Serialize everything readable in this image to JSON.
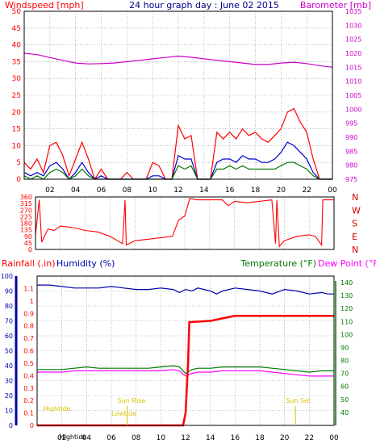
{
  "title": "24 hour graph day : June 02 2015",
  "colors": {
    "wind": "#ff0000",
    "baro": "#cc00cc",
    "hum": "#0000aa",
    "temp": "#007700",
    "dew": "#ff00ff",
    "rain": "#ff0000",
    "tide": "#ffff00",
    "grid": "#909090"
  },
  "chart_data": [
    {
      "id": "wind_baro",
      "type": "line",
      "left_label": "Windspeed [mph]",
      "right_label": "Barometer [mb]",
      "x_ticks": [
        "02",
        "04",
        "06",
        "08",
        "10",
        "12",
        "14",
        "16",
        "18",
        "20",
        "22",
        "00"
      ],
      "y_left_ticks": [
        0,
        5,
        10,
        15,
        20,
        25,
        30,
        35,
        40,
        45,
        50
      ],
      "y_right_ticks": [
        975,
        980,
        985,
        990,
        995,
        1000,
        1005,
        1010,
        1015,
        1020,
        1025,
        1030,
        1035
      ],
      "ylim_left": [
        0,
        50
      ],
      "ylim_right": [
        975,
        1035
      ],
      "series": [
        {
          "name": "barometer",
          "axis": "right",
          "x": [
            0,
            1,
            2,
            3,
            4,
            5,
            6,
            7,
            8,
            9,
            10,
            11,
            12,
            13,
            14,
            15,
            16,
            17,
            18,
            19,
            20,
            21,
            22,
            23,
            24
          ],
          "y": [
            1020,
            1019.5,
            1018.5,
            1017.5,
            1016.5,
            1016.2,
            1016.3,
            1016.5,
            1017,
            1017.5,
            1018,
            1018.5,
            1019,
            1018.6,
            1018,
            1017.5,
            1017,
            1016.5,
            1016,
            1016,
            1016.5,
            1016.8,
            1016.3,
            1015.6,
            1015
          ]
        },
        {
          "name": "wind_gust",
          "axis": "left",
          "x": [
            0,
            0.5,
            1,
            1.5,
            2,
            2.5,
            3,
            3.5,
            4,
            4.5,
            5,
            5.5,
            6,
            6.5,
            7,
            7.5,
            8,
            8.5,
            9,
            9.5,
            10,
            10.5,
            11,
            11.5,
            12,
            12.5,
            13,
            13.5,
            14,
            14.5,
            15,
            15.5,
            16,
            16.5,
            17,
            17.5,
            18,
            18.5,
            19,
            19.5,
            20,
            20.5,
            21,
            21.5,
            22,
            22.5,
            23,
            23.5,
            24
          ],
          "y": [
            5,
            3,
            6,
            2,
            10,
            11,
            7,
            1,
            6,
            11,
            6,
            0,
            3,
            0,
            0,
            0,
            2,
            0,
            0,
            0,
            5,
            4,
            0,
            0,
            16,
            12,
            13,
            0,
            0,
            0,
            14,
            12,
            14,
            12,
            15,
            13,
            14,
            12,
            11,
            13,
            15,
            20,
            21,
            17,
            14,
            6,
            0,
            0,
            0
          ]
        },
        {
          "name": "wind_speed",
          "axis": "left",
          "x": [
            0,
            0.5,
            1,
            1.5,
            2,
            2.5,
            3,
            3.5,
            4,
            4.5,
            5,
            5.5,
            6,
            6.5,
            7,
            7.5,
            8,
            8.5,
            9,
            9.5,
            10,
            10.5,
            11,
            11.5,
            12,
            12.5,
            13,
            13.5,
            14,
            14.5,
            15,
            15.5,
            16,
            16.5,
            17,
            17.5,
            18,
            18.5,
            19,
            19.5,
            20,
            20.5,
            21,
            21.5,
            22,
            22.5,
            23,
            23.5,
            24
          ],
          "y": [
            2,
            1,
            2,
            1,
            4,
            5,
            3,
            0,
            2,
            5,
            2,
            0,
            1,
            0,
            0,
            0,
            0,
            0,
            0,
            0,
            1,
            1,
            0,
            0,
            7,
            6,
            6,
            0,
            0,
            0,
            5,
            6,
            6,
            5,
            7,
            6,
            6,
            5,
            5,
            6,
            8,
            11,
            10,
            8,
            6,
            2,
            0,
            0,
            0
          ]
        },
        {
          "name": "wind_avg",
          "axis": "left",
          "x": [
            0,
            0.5,
            1,
            1.5,
            2,
            2.5,
            3,
            3.5,
            4,
            4.5,
            5,
            5.5,
            6,
            6.5,
            7,
            7.5,
            8,
            8.5,
            9,
            9.5,
            10,
            10.5,
            11,
            11.5,
            12,
            12.5,
            13,
            13.5,
            14,
            14.5,
            15,
            15.5,
            16,
            16.5,
            17,
            17.5,
            18,
            18.5,
            19,
            19.5,
            20,
            20.5,
            21,
            21.5,
            22,
            22.5,
            23,
            23.5,
            24
          ],
          "y": [
            1,
            0,
            1,
            0,
            2,
            3,
            2,
            0,
            1,
            3,
            1,
            0,
            0,
            0,
            0,
            0,
            0,
            0,
            0,
            0,
            0,
            0,
            0,
            0,
            4,
            3,
            4,
            0,
            0,
            0,
            3,
            3,
            4,
            3,
            4,
            3,
            3,
            3,
            3,
            3,
            4,
            5,
            5,
            4,
            3,
            1,
            0,
            0,
            0
          ]
        }
      ]
    },
    {
      "id": "wind_dir",
      "type": "line",
      "x_ticks": [],
      "y_left_ticks": [
        0,
        45,
        90,
        135,
        180,
        225,
        270,
        315,
        360
      ],
      "y_right_labels": [
        "N",
        "W",
        "S",
        "E",
        "N"
      ],
      "ylim_left": [
        0,
        360
      ],
      "series": [
        {
          "name": "wind_direction",
          "x": [
            0,
            0.3,
            0.5,
            1,
            1.5,
            2,
            3,
            4,
            5,
            6,
            7,
            7.2,
            7.3,
            8,
            9,
            10,
            11,
            11.5,
            12,
            12.4,
            13,
            14,
            15,
            15.5,
            16,
            17,
            18,
            19,
            19.3,
            19.4,
            19.6,
            20,
            21,
            22,
            22.5,
            23,
            23.1,
            24
          ],
          "y": [
            100,
            340,
            50,
            140,
            130,
            160,
            150,
            130,
            120,
            90,
            40,
            340,
            30,
            60,
            70,
            80,
            90,
            200,
            230,
            350,
            340,
            340,
            340,
            300,
            330,
            320,
            330,
            340,
            40,
            340,
            20,
            60,
            90,
            100,
            90,
            30,
            340,
            340
          ]
        }
      ]
    },
    {
      "id": "temp_hum_rain",
      "type": "line",
      "labels": [
        "Rainfall (.in)",
        "Humidity (%)",
        "Temperature (°F)",
        "Dew Point (°F)"
      ],
      "x_ticks": [
        "02",
        "04",
        "06",
        "08",
        "10",
        "12",
        "14",
        "16",
        "18",
        "20",
        "22",
        "00"
      ],
      "y_hum_ticks": [
        0,
        10,
        20,
        30,
        40,
        50,
        60,
        70,
        80,
        90,
        100
      ],
      "y_rain_ticks": [
        0,
        0.1,
        0.2,
        0.3,
        0.4,
        0.5,
        0.6,
        0.7,
        0.8,
        0.9,
        1,
        1.1
      ],
      "y_temp_ticks": [
        40,
        50,
        60,
        70,
        80,
        90,
        100,
        110,
        120,
        130,
        140
      ],
      "ylim_hum": [
        0,
        100
      ],
      "ylim_rain": [
        0,
        1.2
      ],
      "ylim_temp": [
        30,
        145
      ],
      "series": [
        {
          "name": "humidity",
          "axis": "hum",
          "x": [
            0,
            1,
            2,
            3,
            4,
            5,
            6,
            7,
            8,
            9,
            10,
            11,
            11.5,
            12,
            12.5,
            13,
            14,
            14.5,
            15,
            16,
            17,
            18,
            19,
            20,
            21,
            22,
            23,
            23.5,
            24
          ],
          "y": [
            94,
            94,
            93,
            92,
            92,
            92,
            93,
            92,
            91,
            91,
            92,
            91,
            89,
            91,
            90,
            92,
            90,
            88,
            90,
            92,
            91,
            90,
            88,
            91,
            90,
            88,
            89,
            88,
            88
          ]
        },
        {
          "name": "temperature",
          "axis": "temp",
          "x": [
            0,
            1,
            2,
            3,
            4,
            5,
            6,
            7,
            8,
            9,
            10,
            11,
            11.5,
            12,
            12.5,
            13,
            14,
            15,
            16,
            17,
            18,
            19,
            20,
            21,
            22,
            23,
            24
          ],
          "y": [
            73,
            73,
            73,
            74,
            75,
            74,
            74,
            74,
            74,
            74,
            75,
            76,
            75,
            70,
            73,
            74,
            74,
            75,
            75,
            75,
            75,
            74,
            73,
            72,
            71,
            72,
            72
          ]
        },
        {
          "name": "dew_point",
          "axis": "temp",
          "x": [
            0,
            1,
            2,
            3,
            4,
            5,
            6,
            7,
            8,
            9,
            10,
            11,
            11.5,
            12,
            12.5,
            13,
            14,
            15,
            16,
            17,
            18,
            19,
            20,
            21,
            22,
            23,
            24
          ],
          "y": [
            71,
            71,
            71,
            72,
            72,
            72,
            72,
            72,
            72,
            72,
            72,
            73,
            72,
            68,
            70,
            71,
            71,
            72,
            72,
            72,
            72,
            71,
            70,
            69,
            68,
            68,
            68
          ]
        },
        {
          "name": "rainfall",
          "axis": "rain",
          "x": [
            0,
            11.8,
            12.0,
            12.2,
            12.3,
            14,
            15,
            16,
            20,
            24
          ],
          "y": [
            0,
            0,
            0.1,
            0.5,
            0.83,
            0.84,
            0.86,
            0.88,
            0.88,
            0.88
          ]
        }
      ],
      "annotations": [
        {
          "text": "Hightide",
          "hour": 0.5,
          "level": "upper"
        },
        {
          "text": "Lowtide",
          "hour": 6.0,
          "level": "lower"
        },
        {
          "text": "Sun Rise",
          "hour": 6.5,
          "level": "top"
        },
        {
          "text": "Sun Set",
          "hour": 20.1,
          "level": "top"
        },
        {
          "text": "Hightide",
          "hour": 1.8,
          "level": "bottom"
        }
      ]
    }
  ]
}
